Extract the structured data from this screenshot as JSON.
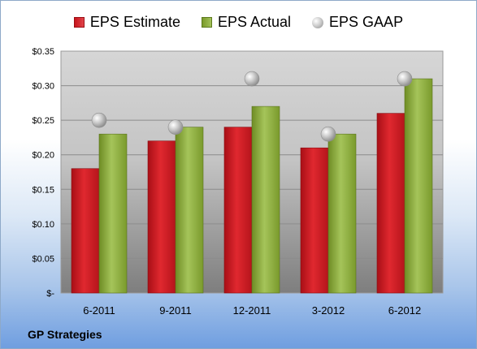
{
  "chart_data": {
    "type": "bar",
    "categories": [
      "6-2011",
      "9-2011",
      "12-2011",
      "3-2012",
      "6-2012"
    ],
    "series": [
      {
        "name": "EPS Estimate",
        "values": [
          0.18,
          0.22,
          0.24,
          0.21,
          0.26
        ],
        "color": "#cc1a22"
      },
      {
        "name": "EPS Actual",
        "values": [
          0.23,
          0.24,
          0.27,
          0.23,
          0.31
        ],
        "color": "#8cad3c"
      }
    ],
    "scatter_series": {
      "name": "EPS GAAP",
      "values": [
        0.25,
        0.24,
        0.31,
        0.23,
        0.31
      ]
    },
    "yticks": [
      "$-",
      "$0.05",
      "$0.10",
      "$0.15",
      "$0.20",
      "$0.25",
      "$0.30",
      "$0.35"
    ],
    "ylim": [
      0,
      0.35
    ],
    "grid": true,
    "legend_position": "top"
  },
  "company": "GP Strategies"
}
